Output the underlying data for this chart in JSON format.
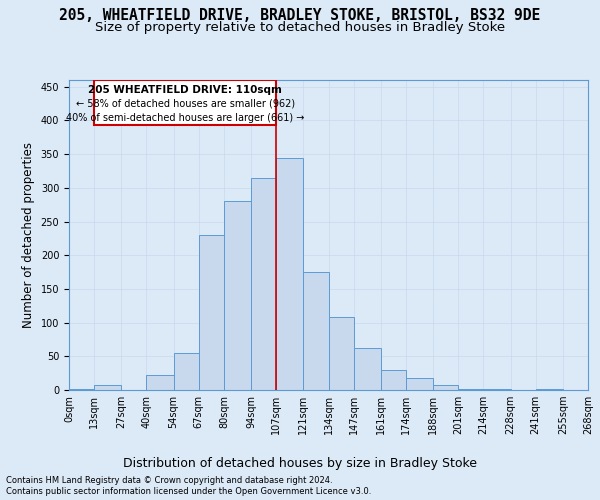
{
  "title_line1": "205, WHEATFIELD DRIVE, BRADLEY STOKE, BRISTOL, BS32 9DE",
  "title_line2": "Size of property relative to detached houses in Bradley Stoke",
  "xlabel": "Distribution of detached houses by size in Bradley Stoke",
  "ylabel": "Number of detached properties",
  "footnote1": "Contains HM Land Registry data © Crown copyright and database right 2024.",
  "footnote2": "Contains public sector information licensed under the Open Government Licence v3.0.",
  "annotation_line1": "205 WHEATFIELD DRIVE: 110sqm",
  "annotation_line2": "← 58% of detached houses are smaller (962)",
  "annotation_line3": "40% of semi-detached houses are larger (661) →",
  "bar_color": "#c9d9ed",
  "bar_edge_color": "#5b9bd5",
  "grid_color": "#c8d8ec",
  "vline_color": "#cc0000",
  "vline_x": 107,
  "background_color": "#dce9f7",
  "plot_bg_color": "#dce9f7",
  "bin_edges": [
    0,
    13,
    27,
    40,
    54,
    67,
    80,
    94,
    107,
    121,
    134,
    147,
    161,
    174,
    188,
    201,
    214,
    228,
    241,
    255,
    268
  ],
  "bar_heights": [
    2,
    7,
    0,
    22,
    55,
    230,
    280,
    315,
    345,
    175,
    108,
    62,
    30,
    18,
    7,
    2,
    2,
    0,
    2,
    0
  ],
  "ylim": [
    0,
    460
  ],
  "yticks": [
    0,
    50,
    100,
    150,
    200,
    250,
    300,
    350,
    400,
    450
  ],
  "title_fontsize": 10.5,
  "subtitle_fontsize": 9.5,
  "tick_label_fontsize": 7,
  "ylabel_fontsize": 8.5,
  "xlabel_fontsize": 9
}
